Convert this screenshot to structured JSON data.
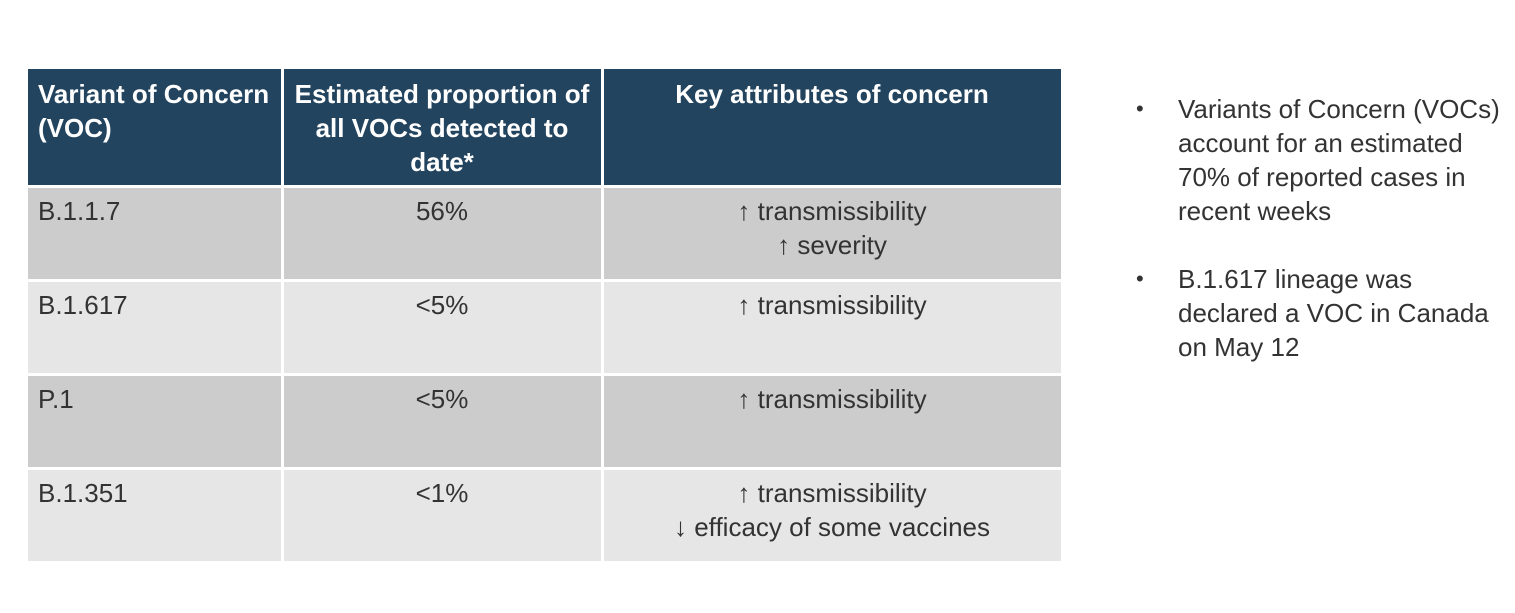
{
  "table": {
    "headers": [
      "Variant of Concern (VOC)",
      "Estimated proportion of all VOCs detected to date*",
      "Key attributes of concern"
    ],
    "rows": [
      {
        "variant": "B.1.1.7",
        "proportion": "56%",
        "attributes": [
          "↑ transmissibility",
          "↑ severity"
        ]
      },
      {
        "variant": "B.1.617",
        "proportion": "<5%",
        "attributes": [
          "↑ transmissibility"
        ]
      },
      {
        "variant": "P.1",
        "proportion": "<5%",
        "attributes": [
          "↑ transmissibility"
        ]
      },
      {
        "variant": "B.1.351",
        "proportion": "<1%",
        "attributes": [
          "↑ transmissibility",
          "↓ efficacy of some vaccines"
        ]
      }
    ]
  },
  "bullets": [
    "Variants of Concern (VOCs) account for an estimated 70% of reported cases in recent weeks",
    "B.1.617 lineage was declared a VOC in Canada on May 12"
  ],
  "bullet_marker": "•",
  "colors": {
    "header_bg": "#23445f",
    "row_dark": "#cccccd",
    "row_light": "#e6e6e6",
    "text": "#333333"
  }
}
